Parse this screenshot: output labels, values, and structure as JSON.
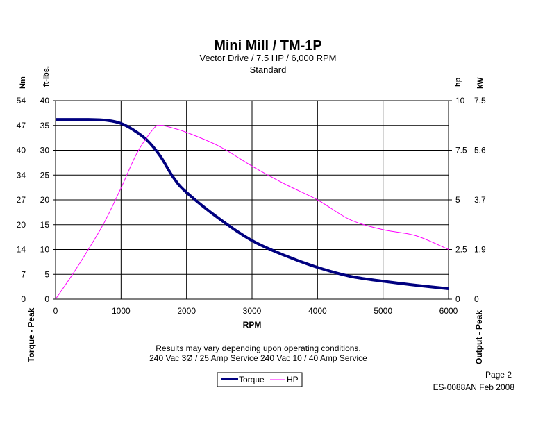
{
  "chart_data": {
    "type": "line",
    "title": "Mini Mill / TM-1P",
    "subtitle": [
      "Vector Drive / 7.5 HP / 6,000 RPM",
      "Standard"
    ],
    "xlabel": "RPM",
    "xlim": [
      0,
      6000
    ],
    "xticks": [
      "0",
      "1000",
      "2000",
      "3000",
      "4000",
      "5000",
      "6000"
    ],
    "left_axes": {
      "unit_outer": "Nm",
      "unit_inner": "ft-lbs.",
      "title": "Torque - Peak",
      "ticks_nm": [
        "0",
        "7",
        "14",
        "20",
        "27",
        "34",
        "40",
        "47",
        "54"
      ],
      "ticks_ftlbs": [
        "0",
        "5",
        "10",
        "15",
        "20",
        "25",
        "30",
        "35",
        "40"
      ],
      "ylim": [
        0,
        40
      ]
    },
    "right_axes": {
      "unit_inner": "hp",
      "unit_outer": "kW",
      "title": "Output - Peak",
      "ticks_hp": [
        "0",
        "2.5",
        "5",
        "7.5",
        "10"
      ],
      "ticks_kw": [
        "0",
        "1.9",
        "3.7",
        "5.6",
        "7.5"
      ],
      "ylim": [
        0,
        10
      ]
    },
    "grid": true,
    "legend_position": "bottom",
    "series": [
      {
        "name": "Torque",
        "axis": "ft-lbs.",
        "color": "#000080",
        "x": [
          0,
          500,
          800,
          1000,
          1200,
          1400,
          1600,
          1800,
          2000,
          2500,
          3000,
          3500,
          4000,
          4500,
          5000,
          5500,
          6000
        ],
        "y": [
          36.2,
          36.2,
          36.0,
          35.4,
          34.0,
          32.0,
          28.8,
          24.5,
          21.5,
          16.2,
          11.8,
          8.8,
          6.4,
          4.6,
          3.6,
          2.8,
          2.1
        ]
      },
      {
        "name": "HP",
        "axis": "hp",
        "color": "#ff00ff",
        "x": [
          0,
          250,
          500,
          750,
          1000,
          1250,
          1500,
          1600,
          1700,
          2000,
          2500,
          3000,
          3500,
          4000,
          4500,
          5000,
          5500,
          6000
        ],
        "y": [
          0,
          1.2,
          2.5,
          3.9,
          5.6,
          7.4,
          8.6,
          8.75,
          8.7,
          8.4,
          7.7,
          6.7,
          5.8,
          5.0,
          4.0,
          3.5,
          3.2,
          2.5
        ]
      }
    ]
  },
  "notes": [
    "Results may vary depending upon operating conditions.",
    "240 Vac 3Ø / 25 Amp Service 240 Vac 10 / 40 Amp Service"
  ],
  "footer": {
    "page": "Page 2",
    "doc_id": "ES-0088AN Feb 2008"
  }
}
